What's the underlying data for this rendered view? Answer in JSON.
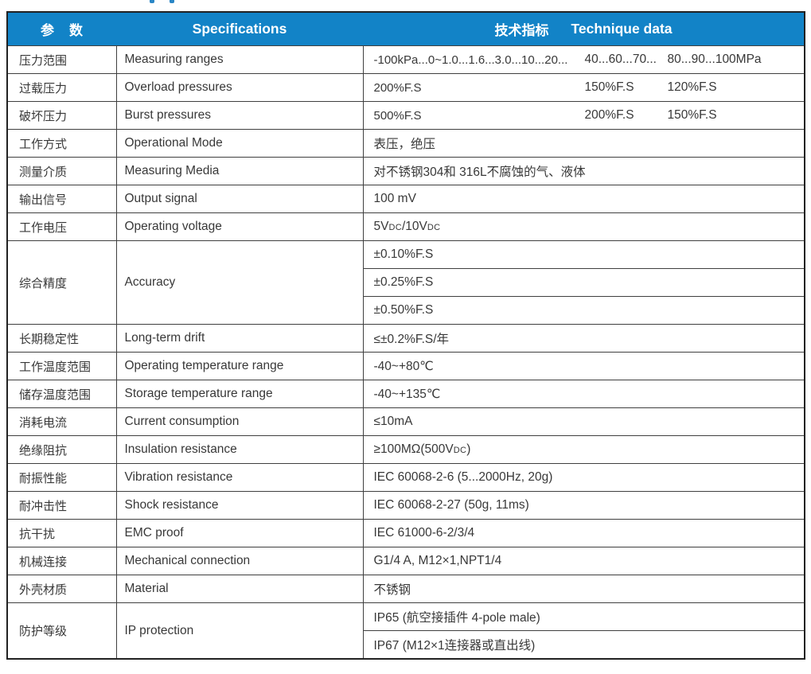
{
  "header": {
    "param_cn": "参　数",
    "param_en": "Specifications",
    "value_cn": "技术指标",
    "value_en": "Technique data"
  },
  "colors": {
    "header_bg": "#1283c7",
    "header_text": "#ffffff",
    "body_text": "#383838",
    "border": "#3f3f3f"
  },
  "rows": [
    {
      "cn": "压力范围",
      "en": "Measuring ranges",
      "v1": "-100kPa...0~1.0...1.6...3.0...10...20...",
      "v2": "40...60...70...",
      "v3": "80...90...100MPa"
    },
    {
      "cn": "过载压力",
      "en": "Overload pressures",
      "v1": "200%F.S",
      "v2": "150%F.S",
      "v3": "120%F.S"
    },
    {
      "cn": "破坏压力",
      "en": "Burst pressures",
      "v1": "500%F.S",
      "v2": "200%F.S",
      "v3": "150%F.S"
    },
    {
      "cn": "工作方式",
      "en": "Operational Mode",
      "value": "表压，绝压"
    },
    {
      "cn": "测量介质",
      "en": "Measuring Media",
      "value": "对不锈钢304和 316L不腐蚀的气、液体"
    },
    {
      "cn": "输出信号",
      "en": "Output signal",
      "value": "100 mV"
    },
    {
      "cn": "工作电压",
      "en": "Operating voltage",
      "value_plain": "5VDC/10VDC",
      "value_rich": [
        {
          "t": "5V"
        },
        {
          "t": "DC",
          "small": true
        },
        {
          "t": "/10V"
        },
        {
          "t": "DC",
          "small": true
        }
      ]
    },
    {
      "cn": "综合精度",
      "en": "Accuracy",
      "values": [
        "±0.10%F.S",
        "±0.25%F.S",
        "±0.50%F.S"
      ]
    },
    {
      "cn": "长期稳定性",
      "en": "Long-term drift",
      "value": "≤±0.2%F.S/年"
    },
    {
      "cn": "工作温度范围",
      "en": "Operating temperature range",
      "value": "-40~+80℃"
    },
    {
      "cn": "储存温度范围",
      "en": "Storage temperature range",
      "value": "-40~+135℃"
    },
    {
      "cn": "消耗电流",
      "en": "Current consumption",
      "value": "≤10mA"
    },
    {
      "cn": "绝缘阻抗",
      "en": "Insulation resistance",
      "value_plain": "≥100MΩ(500VDC)",
      "value_rich": [
        {
          "t": "≥100MΩ(500V"
        },
        {
          "t": "DC",
          "small": true
        },
        {
          "t": ")"
        }
      ]
    },
    {
      "cn": "耐振性能",
      "en": "Vibration resistance",
      "value": "IEC 60068-2-6 (5...2000Hz, 20g)"
    },
    {
      "cn": "耐冲击性",
      "en": "Shock resistance",
      "value": "IEC 60068-2-27 (50g, 11ms)"
    },
    {
      "cn": "抗干扰",
      "en": "EMC proof",
      "value": "IEC 61000-6-2/3/4"
    },
    {
      "cn": "机械连接",
      "en": "Mechanical connection",
      "value": "G1/4 A, M12×1,NPT1/4"
    },
    {
      "cn": "外壳材质",
      "en": "Material",
      "value": "不锈钢"
    },
    {
      "cn": "防护等级",
      "en": "IP protection",
      "values": [
        "IP65 (航空接插件 4-pole male)",
        "IP67 (M12×1连接器或直出线)"
      ]
    }
  ]
}
